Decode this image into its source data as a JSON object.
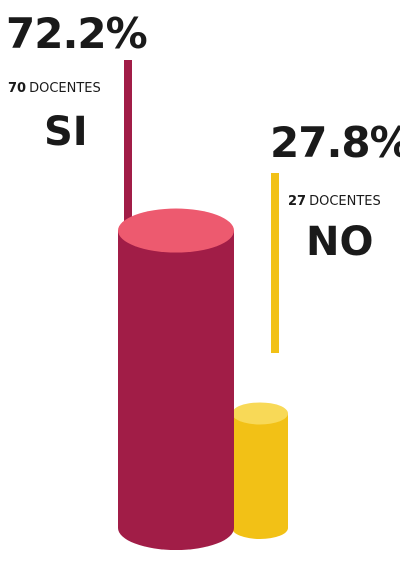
{
  "chart_data": {
    "type": "bar",
    "categories": [
      "SI",
      "NO"
    ],
    "values": [
      72.2,
      27.8
    ],
    "counts": [
      70,
      27
    ],
    "count_word": "DOCENTES",
    "value_suffix": "%",
    "colors": {
      "SI": {
        "body": "#a11d47",
        "top": "#ed5a6f",
        "line": "#a11d47"
      },
      "NO": {
        "body": "#f2c116",
        "top": "#f8d957",
        "line": "#f2c116"
      }
    },
    "grid": false,
    "legend": "none"
  }
}
